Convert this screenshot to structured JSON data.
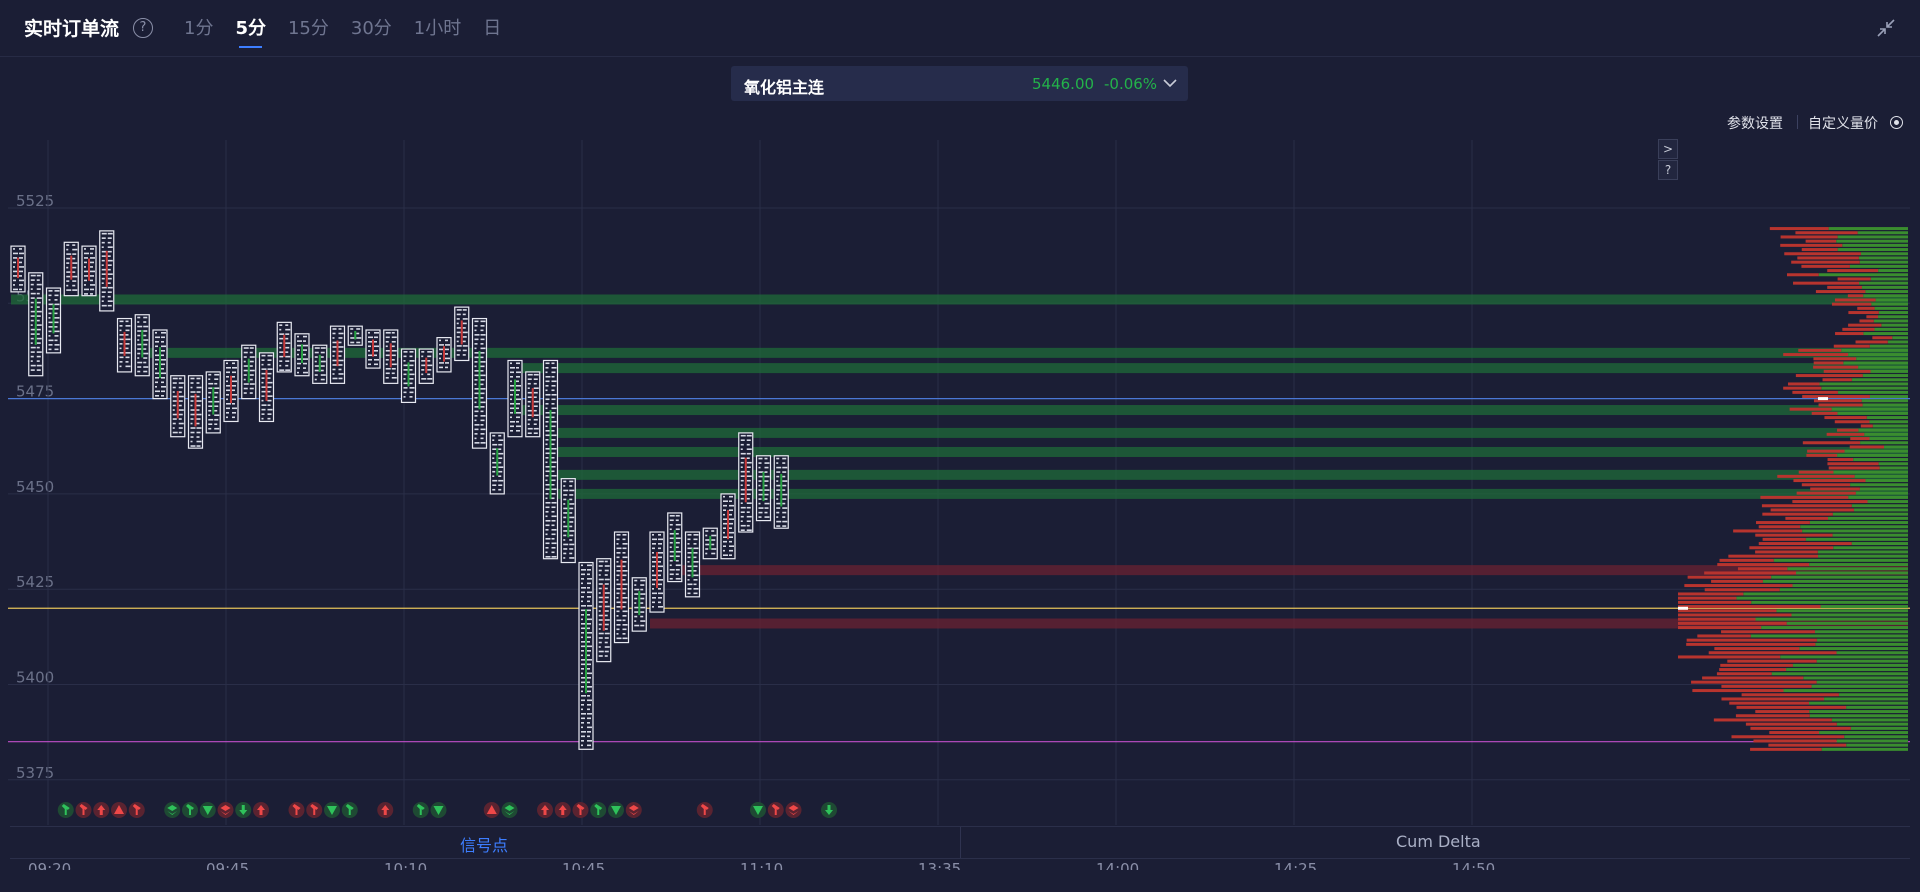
{
  "header": {
    "title": "实时订单流",
    "tabs": [
      {
        "label": "1分",
        "active": false
      },
      {
        "label": "5分",
        "active": true
      },
      {
        "label": "15分",
        "active": false
      },
      {
        "label": "30分",
        "active": false
      },
      {
        "label": "1小时",
        "active": false
      },
      {
        "label": "日",
        "active": false
      }
    ]
  },
  "symbol": {
    "name": "氧化铝主连",
    "price": "5446.00",
    "change": "-0.06%"
  },
  "toolbar": {
    "settings_label": "参数设置",
    "custom_label": "自定义量价"
  },
  "side_buttons": [
    ">",
    "?"
  ],
  "bottom_tabs": {
    "signal_label": "信号点",
    "cum_label": "Cum Delta"
  },
  "colors": {
    "background": "#1b1e35",
    "up": "#26a042",
    "down": "#c8393a",
    "accent": "#3d7eff",
    "line_blue": "#4a78d6",
    "line_yellow": "#e5c25a",
    "line_purple": "#c04fc8"
  },
  "chart_data": {
    "type": "footprint",
    "y_ticks": [
      5525,
      5500,
      5475,
      5450,
      5425,
      5400,
      5375
    ],
    "ylim": [
      5370,
      5533
    ],
    "x_labels": [
      "09:20",
      "09:45",
      "10:10",
      "10:45",
      "11:10",
      "13:35",
      "14:00",
      "14:25",
      "14:50"
    ],
    "reference_lines": [
      {
        "name": "blue",
        "value": 5475
      },
      {
        "name": "yellow",
        "value": 5420
      },
      {
        "name": "purple",
        "value": 5385
      }
    ],
    "candles": [
      {
        "high": 5515,
        "low": 5503,
        "dir": "down"
      },
      {
        "high": 5508,
        "low": 5481,
        "dir": "up"
      },
      {
        "high": 5504,
        "low": 5487,
        "dir": "up"
      },
      {
        "high": 5516,
        "low": 5502,
        "dir": "down"
      },
      {
        "high": 5515,
        "low": 5502,
        "dir": "down"
      },
      {
        "high": 5519,
        "low": 5498,
        "dir": "down"
      },
      {
        "high": 5496,
        "low": 5482,
        "dir": "down"
      },
      {
        "high": 5497,
        "low": 5481,
        "dir": "up"
      },
      {
        "high": 5493,
        "low": 5475,
        "dir": "up"
      },
      {
        "high": 5481,
        "low": 5465,
        "dir": "down"
      },
      {
        "high": 5481,
        "low": 5462,
        "dir": "down"
      },
      {
        "high": 5482,
        "low": 5466,
        "dir": "up"
      },
      {
        "high": 5485,
        "low": 5469,
        "dir": "down"
      },
      {
        "high": 5489,
        "low": 5475,
        "dir": "up"
      },
      {
        "high": 5487,
        "low": 5469,
        "dir": "down"
      },
      {
        "high": 5495,
        "low": 5482,
        "dir": "down"
      },
      {
        "high": 5492,
        "low": 5481,
        "dir": "up"
      },
      {
        "high": 5489,
        "low": 5479,
        "dir": "up"
      },
      {
        "high": 5494,
        "low": 5479,
        "dir": "down"
      },
      {
        "high": 5494,
        "low": 5489,
        "dir": "up"
      },
      {
        "high": 5493,
        "low": 5483,
        "dir": "down"
      },
      {
        "high": 5493,
        "low": 5479,
        "dir": "down"
      },
      {
        "high": 5488,
        "low": 5474,
        "dir": "up"
      },
      {
        "high": 5488,
        "low": 5479,
        "dir": "down"
      },
      {
        "high": 5491,
        "low": 5482,
        "dir": "down"
      },
      {
        "high": 5499,
        "low": 5485,
        "dir": "down"
      },
      {
        "high": 5496,
        "low": 5462,
        "dir": "up"
      },
      {
        "high": 5466,
        "low": 5450,
        "dir": "up"
      },
      {
        "high": 5485,
        "low": 5465,
        "dir": "up"
      },
      {
        "high": 5482,
        "low": 5465,
        "dir": "down"
      },
      {
        "high": 5485,
        "low": 5433,
        "dir": "up"
      },
      {
        "high": 5454,
        "low": 5432,
        "dir": "up"
      },
      {
        "high": 5432,
        "low": 5383,
        "dir": "up"
      },
      {
        "high": 5433,
        "low": 5406,
        "dir": "down"
      },
      {
        "high": 5440,
        "low": 5411,
        "dir": "down"
      },
      {
        "high": 5428,
        "low": 5414,
        "dir": "up"
      },
      {
        "high": 5440,
        "low": 5419,
        "dir": "down"
      },
      {
        "high": 5445,
        "low": 5427,
        "dir": "up"
      },
      {
        "high": 5440,
        "low": 5423,
        "dir": "up"
      },
      {
        "high": 5441,
        "low": 5433,
        "dir": "up"
      },
      {
        "high": 5450,
        "low": 5433,
        "dir": "down"
      },
      {
        "high": 5466,
        "low": 5440,
        "dir": "down"
      },
      {
        "high": 5460,
        "low": 5443,
        "dir": "up"
      },
      {
        "high": 5460,
        "low": 5441,
        "dir": "up"
      }
    ],
    "zones": [
      {
        "price": 5501,
        "dir": "up",
        "start_candle": 0
      },
      {
        "price": 5487,
        "dir": "up",
        "start_candle": 7
      },
      {
        "price": 5483,
        "dir": "up",
        "start_candle": 28
      },
      {
        "price": 5472,
        "dir": "up",
        "start_candle": 28
      },
      {
        "price": 5466,
        "dir": "up",
        "start_candle": 30
      },
      {
        "price": 5461,
        "dir": "up",
        "start_candle": 30
      },
      {
        "price": 5455,
        "dir": "up",
        "start_candle": 30
      },
      {
        "price": 5450,
        "dir": "up",
        "start_candle": 30
      },
      {
        "price": 5430,
        "dir": "down",
        "start_candle": 37
      },
      {
        "price": 5416,
        "dir": "down",
        "start_candle": 36
      }
    ],
    "signals": [
      {
        "candle": 1,
        "dir": "up",
        "icon": "hammer"
      },
      {
        "candle": 2,
        "dir": "down",
        "icon": "hammer"
      },
      {
        "candle": 3,
        "dir": "down",
        "icon": "arrow-up"
      },
      {
        "candle": 4,
        "dir": "down",
        "icon": "triangle-up"
      },
      {
        "candle": 5,
        "dir": "down",
        "icon": "hammer"
      },
      {
        "candle": 7,
        "dir": "up",
        "icon": "stack"
      },
      {
        "candle": 8,
        "dir": "up",
        "icon": "hammer"
      },
      {
        "candle": 9,
        "dir": "up",
        "icon": "triangle-down"
      },
      {
        "candle": 10,
        "dir": "down",
        "icon": "stack"
      },
      {
        "candle": 11,
        "dir": "up",
        "icon": "arrow-down"
      },
      {
        "candle": 12,
        "dir": "down",
        "icon": "arrow-up"
      },
      {
        "candle": 14,
        "dir": "down",
        "icon": "hammer"
      },
      {
        "candle": 15,
        "dir": "down",
        "icon": "hammer"
      },
      {
        "candle": 16,
        "dir": "up",
        "icon": "triangle-down"
      },
      {
        "candle": 17,
        "dir": "up",
        "icon": "hammer"
      },
      {
        "candle": 19,
        "dir": "down",
        "icon": "arrow-up"
      },
      {
        "candle": 21,
        "dir": "up",
        "icon": "hammer"
      },
      {
        "candle": 22,
        "dir": "up",
        "icon": "triangle-down"
      },
      {
        "candle": 25,
        "dir": "down",
        "icon": "triangle-up"
      },
      {
        "candle": 26,
        "dir": "up",
        "icon": "stack"
      },
      {
        "candle": 28,
        "dir": "down",
        "icon": "arrow-up"
      },
      {
        "candle": 29,
        "dir": "down",
        "icon": "arrow-up"
      },
      {
        "candle": 30,
        "dir": "down",
        "icon": "hammer"
      },
      {
        "candle": 31,
        "dir": "up",
        "icon": "hammer"
      },
      {
        "candle": 32,
        "dir": "up",
        "icon": "triangle-down"
      },
      {
        "candle": 33,
        "dir": "down",
        "icon": "stack"
      },
      {
        "candle": 37,
        "dir": "down",
        "icon": "hammer"
      },
      {
        "candle": 40,
        "dir": "up",
        "icon": "triangle-down"
      },
      {
        "candle": 41,
        "dir": "down",
        "icon": "hammer"
      },
      {
        "candle": 42,
        "dir": "down",
        "icon": "stack"
      },
      {
        "candle": 44,
        "dir": "up",
        "icon": "arrow-down"
      }
    ]
  }
}
